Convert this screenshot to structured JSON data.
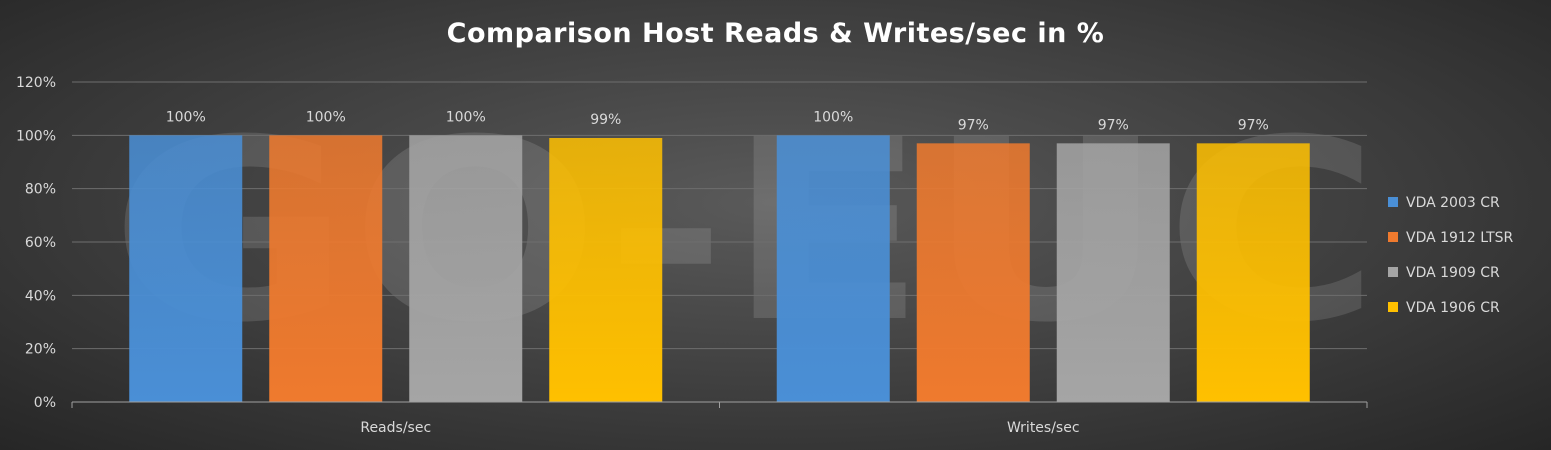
{
  "chart_data": {
    "type": "bar",
    "title": "Comparison Host Reads & Writes/sec in %",
    "xlabel": "",
    "ylabel": "",
    "categories": [
      "Reads/sec",
      "Writes/sec"
    ],
    "series": [
      {
        "name": "VDA 2003 CR",
        "values": [
          100,
          100
        ],
        "labels": [
          "100%",
          "100%"
        ],
        "color": "#4a8fd6"
      },
      {
        "name": "VDA 1912 LTSR",
        "values": [
          100,
          97
        ],
        "labels": [
          "100%",
          "97%"
        ],
        "color": "#ef7a2e"
      },
      {
        "name": "VDA 1909 CR",
        "values": [
          100,
          97
        ],
        "labels": [
          "100%",
          "97%"
        ],
        "color": "#a5a5a5"
      },
      {
        "name": "VDA 1906 CR",
        "values": [
          99,
          97
        ],
        "labels": [
          "99%",
          "97%"
        ],
        "color": "#ffc000"
      }
    ],
    "ylim": [
      0,
      120
    ],
    "yticks": [
      "0%",
      "20%",
      "40%",
      "60%",
      "80%",
      "100%",
      "120%"
    ],
    "grid": true,
    "legend": "right"
  },
  "watermark": {
    "text": "GO-EUC"
  },
  "colors": {
    "text": "#d9d9d9",
    "grid": "#6e6e6e",
    "axis": "#a0a0a0"
  }
}
